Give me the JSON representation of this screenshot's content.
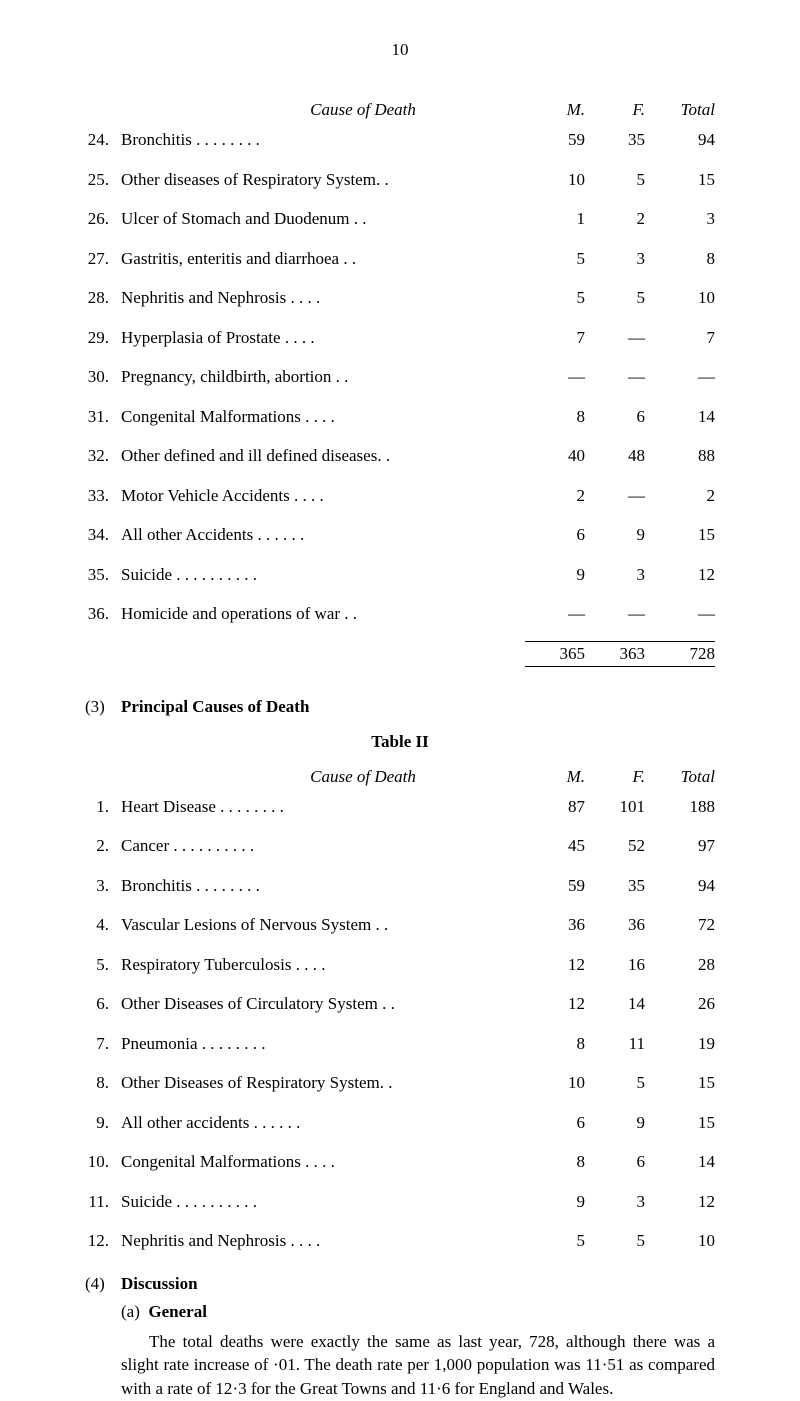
{
  "pageNumber": "10",
  "table1": {
    "headers": {
      "cause": "Cause of Death",
      "m": "M.",
      "f": "F.",
      "t": "Total"
    },
    "rows": [
      {
        "num": "24.",
        "label": "Bronchitis    . .    . .    . .    . .",
        "m": "59",
        "f": "35",
        "t": "94"
      },
      {
        "num": "25.",
        "label": "Other diseases of Respiratory System. .",
        "m": "10",
        "f": "5",
        "t": "15"
      },
      {
        "num": "26.",
        "label": "Ulcer of Stomach and Duodenum    . .",
        "m": "1",
        "f": "2",
        "t": "3"
      },
      {
        "num": "27.",
        "label": "Gastritis, enteritis and diarrhoea    . .",
        "m": "5",
        "f": "3",
        "t": "8"
      },
      {
        "num": "28.",
        "label": "Nephritis and Nephrosis    . .    . .",
        "m": "5",
        "f": "5",
        "t": "10"
      },
      {
        "num": "29.",
        "label": "Hyperplasia of Prostate    . .    . .",
        "m": "7",
        "f": "—",
        "t": "7"
      },
      {
        "num": "30.",
        "label": "Pregnancy, childbirth, abortion    . .",
        "m": "—",
        "f": "—",
        "t": "—"
      },
      {
        "num": "31.",
        "label": "Congenital Malformations    . .    . .",
        "m": "8",
        "f": "6",
        "t": "14"
      },
      {
        "num": "32.",
        "label": "Other defined and ill defined diseases. .",
        "m": "40",
        "f": "48",
        "t": "88"
      },
      {
        "num": "33.",
        "label": "Motor Vehicle Accidents    . .    . .",
        "m": "2",
        "f": "—",
        "t": "2"
      },
      {
        "num": "34.",
        "label": "All other Accidents    . .    . .    . .",
        "m": "6",
        "f": "9",
        "t": "15"
      },
      {
        "num": "35.",
        "label": "Suicide    . .    . .    . .    . .    . .",
        "m": "9",
        "f": "3",
        "t": "12"
      },
      {
        "num": "36.",
        "label": "Homicide and operations of war    . .",
        "m": "—",
        "f": "—",
        "t": "—"
      }
    ],
    "totals": {
      "m": "365",
      "f": "363",
      "t": "728"
    }
  },
  "section3": {
    "num": "(3)",
    "title": "Principal Causes of Death",
    "tableTitle": "Table II"
  },
  "table2": {
    "headers": {
      "cause": "Cause of Death",
      "m": "M.",
      "f": "F.",
      "t": "Total"
    },
    "rows": [
      {
        "num": "1.",
        "label": "Heart Disease    . .    . .    . .    . .",
        "m": "87",
        "f": "101",
        "t": "188"
      },
      {
        "num": "2.",
        "label": "Cancer    . .    . .    . .    . .    . .",
        "m": "45",
        "f": "52",
        "t": "97"
      },
      {
        "num": "3.",
        "label": "Bronchitis    . .    . .    . .    . .",
        "m": "59",
        "f": "35",
        "t": "94"
      },
      {
        "num": "4.",
        "label": "Vascular Lesions of Nervous System . .",
        "m": "36",
        "f": "36",
        "t": "72"
      },
      {
        "num": "5.",
        "label": "Respiratory Tuberculosis    . .    . .",
        "m": "12",
        "f": "16",
        "t": "28"
      },
      {
        "num": "6.",
        "label": "Other Diseases of Circulatory System . .",
        "m": "12",
        "f": "14",
        "t": "26"
      },
      {
        "num": "7.",
        "label": "Pneumonia    . .    . .    . .    . .",
        "m": "8",
        "f": "11",
        "t": "19"
      },
      {
        "num": "8.",
        "label": "Other Diseases of Respiratory System. .",
        "m": "10",
        "f": "5",
        "t": "15"
      },
      {
        "num": "9.",
        "label": "All other accidents    . .    . .    . .",
        "m": "6",
        "f": "9",
        "t": "15"
      },
      {
        "num": "10.",
        "label": "Congenital Malformations    . .    . .",
        "m": "8",
        "f": "6",
        "t": "14"
      },
      {
        "num": "11.",
        "label": "Suicide    . .    . .    . .    . .    . .",
        "m": "9",
        "f": "3",
        "t": "12"
      },
      {
        "num": "12.",
        "label": "Nephritis and Nephrosis    . .    . .",
        "m": "5",
        "f": "5",
        "t": "10"
      }
    ]
  },
  "discussion": {
    "num": "(4)",
    "title": "Discussion",
    "subLabel": "(a)",
    "subTitle": "General",
    "body": "The total deaths were exactly the same as last year, 728, although there was a slight rate increase of ·01. The death rate per 1,000 population was 11·51 as compared with a rate of 12·3 for the Great Towns and 11·6 for England and Wales."
  }
}
